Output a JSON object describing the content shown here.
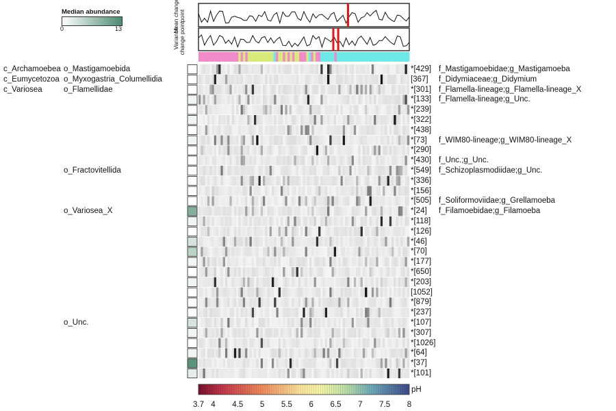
{
  "legend": {
    "title": "Median abundance",
    "min_label": "0",
    "max_label": "13",
    "min": 0,
    "max": 13
  },
  "panels": {
    "mean_label": "Mean change point",
    "variance_label": "Variance change point",
    "mean_change_points_ph": [
      6.75
    ],
    "variance_change_points_ph": [
      6.45,
      6.55
    ]
  },
  "class_labels": [
    {
      "text": "c_Archamoebea",
      "row": 0
    },
    {
      "text": "c_Eumycetozoa",
      "row": 1
    },
    {
      "text": "c_Variosea",
      "row": 2
    }
  ],
  "order_labels": [
    {
      "text": "o_Mastigamoebida",
      "row": 0
    },
    {
      "text": "o_Myxogastria_Columellidia",
      "row": 1
    },
    {
      "text": "o_Flamellidae",
      "row": 2
    },
    {
      "text": "o_Fractovitellida",
      "row": 10
    },
    {
      "text": "o_Variosea_X",
      "row": 14
    },
    {
      "text": "o_Unc.",
      "row": 25
    }
  ],
  "chart_data": {
    "type": "heatmap",
    "x_axis": {
      "label": "pH",
      "range": [
        3.7,
        8
      ],
      "ticks": [
        3.7,
        4,
        4.5,
        5,
        5.5,
        6,
        6.5,
        7,
        7.5,
        8
      ],
      "tick_labels": [
        "3.7",
        "4",
        "4.5",
        "5",
        "5.5",
        "6",
        "6.5",
        "7",
        "7.5",
        "8"
      ]
    },
    "rows": [
      {
        "id": "*[429]",
        "taxon": "f_Mastigamoebidae;g_Mastigamoeba",
        "median": 0
      },
      {
        "id": "[367]",
        "taxon": "f_Didymiaceae;g_Didymium",
        "median": 0
      },
      {
        "id": "*[301]",
        "taxon": "f_Flamella-lineage;g_Flamella-lineage_X",
        "median": 0
      },
      {
        "id": "*[133]",
        "taxon": "f_Flamella-lineage;g_Unc.",
        "median": 1
      },
      {
        "id": "*[239]",
        "taxon": "",
        "median": 0
      },
      {
        "id": "*[322]",
        "taxon": "",
        "median": 1
      },
      {
        "id": "*[438]",
        "taxon": "",
        "median": 0
      },
      {
        "id": "*[73]",
        "taxon": "f_WIM80-lineage;g_WIM80-lineage_X",
        "median": 1
      },
      {
        "id": "*[290]",
        "taxon": "",
        "median": 0
      },
      {
        "id": "*[430]",
        "taxon": "f_Unc.;g_Unc.",
        "median": 0
      },
      {
        "id": "*[549]",
        "taxon": "f_Schizoplasmodiidae;g_Unc.",
        "median": 0
      },
      {
        "id": "*[336]",
        "taxon": "",
        "median": 0
      },
      {
        "id": "*[156]",
        "taxon": "",
        "median": 0
      },
      {
        "id": "*[505]",
        "taxon": "f_Soliformoviidae;g_Grellamoeba",
        "median": 0
      },
      {
        "id": "*[24]",
        "taxon": "f_Filamoebidae;g_Filamoeba",
        "median": 9
      },
      {
        "id": "*[118]",
        "taxon": "",
        "median": 1
      },
      {
        "id": "*[126]",
        "taxon": "",
        "median": 0
      },
      {
        "id": "*[46]",
        "taxon": "",
        "median": 3
      },
      {
        "id": "*[70]",
        "taxon": "",
        "median": 5
      },
      {
        "id": "*[177]",
        "taxon": "",
        "median": 1
      },
      {
        "id": "*[650]",
        "taxon": "",
        "median": 0
      },
      {
        "id": "*[203]",
        "taxon": "",
        "median": 1
      },
      {
        "id": "[1052]",
        "taxon": "",
        "median": 0
      },
      {
        "id": "*[879]",
        "taxon": "",
        "median": 0
      },
      {
        "id": "*[237]",
        "taxon": "",
        "median": 0
      },
      {
        "id": "*[107]",
        "taxon": "",
        "median": 3
      },
      {
        "id": "*[307]",
        "taxon": "",
        "median": 1
      },
      {
        "id": "*[1026]",
        "taxon": "",
        "median": 0
      },
      {
        "id": "*[64]",
        "taxon": "",
        "median": 1
      },
      {
        "id": "*[37]",
        "taxon": "",
        "median": 12
      },
      {
        "id": "*[101]",
        "taxon": "",
        "median": 2
      }
    ],
    "group_bar": [
      "#f08ac8",
      "#f08ac8",
      "#f08ac8",
      "#f08ac8",
      "#f08ac8",
      "#f08ac8",
      "#f08ac8",
      "#f08ac8",
      "#f08ac8",
      "#f08ac8",
      "#f08ac8",
      "#f08ac8",
      "#f08ac8",
      "#f08ac8",
      "#f08ac8",
      "#f08ac8",
      "#f08ac8",
      "#d7ea7a",
      "#f08ac8",
      "#d7ea7a",
      "#f08ac8",
      "#d7ea7a",
      "#d7ea7a",
      "#d7ea7a",
      "#d7ea7a",
      "#d7ea7a",
      "#d7ea7a",
      "#d7ea7a",
      "#d7ea7a",
      "#d7ea7a",
      "#d7ea7a",
      "#d7ea7a",
      "#6fe8e8",
      "#f08ac8",
      "#d7ea7a",
      "#d7ea7a",
      "#f08ac8",
      "#d7ea7a",
      "#f08ac8",
      "#d7ea7a",
      "#f08ac8",
      "#d7ea7a",
      "#d7ea7a",
      "#f08ac8",
      "#f08ac8",
      "#f08ac8",
      "#d7ea7a",
      "#6fe8e8",
      "#f08ac8",
      "#d7ea7a",
      "#f08ac8",
      "#f08ac8",
      "#6fe8e8",
      "#6fe8e8",
      "#6fe8e8",
      "#6fe8e8",
      "#6fe8e8",
      "#6fe8e8",
      "#f08ac8",
      "#6fe8e8",
      "#6fe8e8",
      "#6fe8e8",
      "#6fe8e8",
      "#6fe8e8",
      "#6fe8e8",
      "#6fe8e8",
      "#6fe8e8",
      "#6fe8e8",
      "#6fe8e8",
      "#6fe8e8",
      "#6fe8e8",
      "#6fe8e8",
      "#6fe8e8",
      "#6fe8e8",
      "#6fe8e8",
      "#6fe8e8",
      "#6fe8e8",
      "#6fe8e8",
      "#6fe8e8",
      "#6fe8e8",
      "#6fe8e8",
      "#6fe8e8",
      "#6fe8e8",
      "#6fe8e8",
      "#6fe8e8",
      "#6fe8e8",
      "#6fe8e8",
      "#6fe8e8",
      "#6fe8e8",
      "#6fe8e8"
    ]
  },
  "colors": {
    "median_max": "#4d8a73",
    "change_point": "#ee1111",
    "ph_low": "#7a0f2d",
    "ph_mid": "#f5f5a8",
    "ph_high": "#3d4a8c"
  }
}
